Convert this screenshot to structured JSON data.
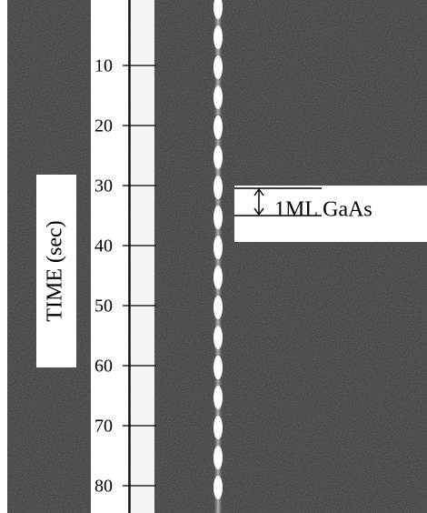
{
  "axis": {
    "label": "TIME (sec)",
    "ticks": [
      10,
      20,
      30,
      40,
      50,
      60,
      70,
      80
    ]
  },
  "annotation": "1ML GaAs"
}
